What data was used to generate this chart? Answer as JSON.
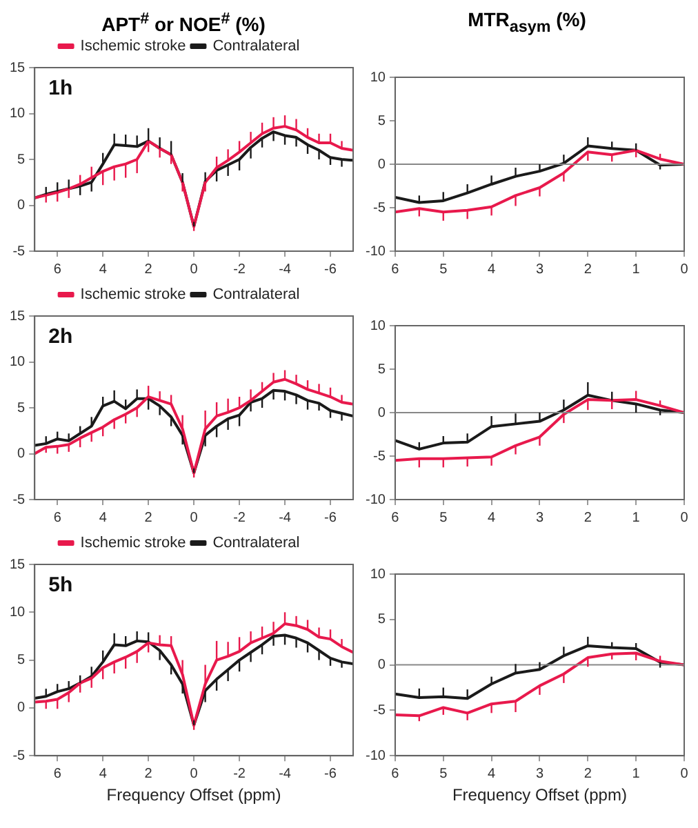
{
  "chart_data": [
    {
      "type": "line",
      "title": "APT$^{#}$ or NOE$^{#}$ (%)",
      "annotations": [
        "1h"
      ],
      "legend": "top",
      "x": [
        7,
        6.5,
        6,
        5.5,
        5,
        4.5,
        4,
        3.5,
        3,
        2.5,
        2,
        1.5,
        1,
        0.5,
        0,
        -0.5,
        -1,
        -1.5,
        -2,
        -2.5,
        -3,
        -3.5,
        -4,
        -4.5,
        -5,
        -5.5,
        -6,
        -6.5,
        -7
      ],
      "xlim": [
        7,
        -7
      ],
      "xticks": [
        6,
        4,
        2,
        0,
        -2,
        -4,
        -6
      ],
      "ylim": [
        -5,
        15
      ],
      "yticks": [
        -5,
        0,
        5,
        10,
        15
      ],
      "series": [
        {
          "name": "Ischemic stroke",
          "color": "#e8194c",
          "values": [
            0.8,
            1.1,
            1.4,
            1.8,
            2.3,
            3.0,
            3.7,
            4.2,
            4.5,
            5.0,
            7.0,
            6.2,
            5.5,
            2.5,
            -2.3,
            2.5,
            4.1,
            4.9,
            5.8,
            6.8,
            7.8,
            8.4,
            8.6,
            8.2,
            7.4,
            6.8,
            6.8,
            6.2,
            6.0
          ],
          "errors": [
            null,
            [
              0.3,
              1.1
            ],
            [
              0.4,
              1.4
            ],
            [
              0.8,
              1.8
            ],
            [
              2.3,
              3.3
            ],
            [
              3.0,
              4.2
            ],
            [
              2.2,
              3.7
            ],
            [
              2.7,
              4.2
            ],
            [
              3.0,
              4.5
            ],
            [
              3.5,
              5.0
            ],
            [
              5.8,
              7.0
            ],
            [
              5.2,
              6.2
            ],
            [
              4.5,
              5.5
            ],
            [
              1.5,
              2.5
            ],
            [
              -2.8,
              -2.3
            ],
            [
              1.5,
              2.5
            ],
            [
              4.1,
              5.3
            ],
            [
              4.9,
              6.1
            ],
            [
              5.8,
              7.0
            ],
            [
              6.8,
              8.0
            ],
            [
              7.8,
              9.0
            ],
            [
              8.4,
              9.6
            ],
            [
              8.6,
              9.8
            ],
            [
              8.2,
              9.4
            ],
            [
              7.4,
              8.4
            ],
            [
              6.8,
              7.8
            ],
            [
              6.8,
              7.8
            ],
            [
              6.2,
              7.0
            ],
            null
          ]
        },
        {
          "name": "Contralateral",
          "color": "#1a1a1a",
          "values": [
            0.8,
            1.2,
            1.5,
            1.8,
            2.1,
            2.5,
            4.5,
            6.6,
            6.5,
            6.4,
            7.0,
            6.2,
            5.5,
            2.5,
            -2.3,
            2.6,
            3.8,
            4.4,
            5.0,
            6.3,
            7.3,
            8.0,
            7.6,
            7.4,
            6.6,
            6.0,
            5.2,
            5.0,
            4.9
          ],
          "errors": [
            null,
            [
              1.2,
              2.0
            ],
            [
              1.5,
              2.5
            ],
            [
              1.8,
              2.8
            ],
            [
              1.1,
              2.1
            ],
            [
              1.5,
              2.5
            ],
            [
              4.5,
              5.7
            ],
            [
              6.6,
              7.8
            ],
            [
              6.5,
              7.7
            ],
            [
              6.4,
              7.6
            ],
            [
              7.0,
              8.4
            ],
            [
              6.2,
              7.4
            ],
            [
              5.5,
              7.0
            ],
            [
              2.5,
              3.5
            ],
            [
              -2.3,
              -1.8
            ],
            [
              2.6,
              3.6
            ],
            [
              2.6,
              3.8
            ],
            [
              3.2,
              4.4
            ],
            [
              3.8,
              5.0
            ],
            [
              5.1,
              6.3
            ],
            [
              6.3,
              7.3
            ],
            [
              7.0,
              8.0
            ],
            [
              6.6,
              7.6
            ],
            [
              6.4,
              7.4
            ],
            [
              5.6,
              6.6
            ],
            [
              5.0,
              6.0
            ],
            [
              4.4,
              5.2
            ],
            [
              4.2,
              5.0
            ],
            null
          ]
        }
      ]
    },
    {
      "type": "line",
      "title": "MTR$_{asym}$ (%)",
      "x": [
        6,
        5.5,
        5,
        4.5,
        4,
        3.5,
        3,
        2.5,
        2,
        1.5,
        1,
        0.5,
        0
      ],
      "xlim": [
        6,
        0
      ],
      "xticks": [
        6,
        5,
        4,
        3,
        2,
        1,
        0
      ],
      "ylim": [
        -10,
        10
      ],
      "yticks": [
        -10,
        -5,
        0,
        5,
        10
      ],
      "ref_lines": [
        {
          "axis": "y",
          "value": 0,
          "color": "#888888"
        }
      ],
      "series": [
        {
          "color": "#e8194c",
          "values": [
            -5.5,
            -5.1,
            -5.5,
            -5.3,
            -4.9,
            -3.6,
            -2.7,
            -1.0,
            1.4,
            1.1,
            1.6,
            0.6,
            0
          ],
          "errors": [
            null,
            [
              -6.0,
              -5.1
            ],
            [
              -6.5,
              -5.5
            ],
            [
              -6.3,
              -5.3
            ],
            [
              -5.9,
              -4.9
            ],
            [
              -4.8,
              -3.6
            ],
            [
              -3.7,
              -2.7
            ],
            [
              -2.0,
              -1.0
            ],
            [
              0.4,
              1.4
            ],
            [
              0.3,
              1.1
            ],
            [
              0.8,
              1.6
            ],
            [
              0.6,
              1.2
            ],
            null
          ]
        },
        {
          "color": "#1a1a1a",
          "values": [
            -3.8,
            -4.4,
            -4.2,
            -3.3,
            -2.3,
            -1.4,
            -0.8,
            0.1,
            2.1,
            1.8,
            1.6,
            -0.1,
            0
          ],
          "errors": [
            null,
            [
              -4.4,
              -3.6
            ],
            [
              -4.2,
              -3.2
            ],
            [
              -3.3,
              -2.3
            ],
            [
              -2.3,
              -1.3
            ],
            [
              -1.4,
              -0.4
            ],
            [
              -0.8,
              0.0
            ],
            [
              0.1,
              1.1
            ],
            [
              2.1,
              3.1
            ],
            [
              1.8,
              2.6
            ],
            [
              1.6,
              2.4
            ],
            [
              -0.6,
              -0.1
            ],
            null
          ]
        }
      ]
    },
    {
      "type": "line",
      "annotations": [
        "2h"
      ],
      "legend": "top",
      "x": [
        7,
        6.5,
        6,
        5.5,
        5,
        4.5,
        4,
        3.5,
        3,
        2.5,
        2,
        1.5,
        1,
        0.5,
        0,
        -0.5,
        -1,
        -1.5,
        -2,
        -2.5,
        -3,
        -3.5,
        -4,
        -4.5,
        -5,
        -5.5,
        -6,
        -6.5,
        -7
      ],
      "xlim": [
        7,
        -7
      ],
      "xticks": [
        6,
        4,
        2,
        0,
        -2,
        -4,
        -6
      ],
      "ylim": [
        -5,
        15
      ],
      "yticks": [
        -5,
        0,
        5,
        10,
        15
      ],
      "series": [
        {
          "name": "Ischemic stroke",
          "color": "#e8194c",
          "values": [
            0.0,
            0.7,
            0.8,
            1.0,
            1.7,
            2.3,
            2.9,
            3.7,
            4.3,
            5.0,
            6.2,
            5.8,
            5.4,
            2.7,
            -2.1,
            2.7,
            4.1,
            4.5,
            5.0,
            5.8,
            6.8,
            7.8,
            8.1,
            7.6,
            7.0,
            6.6,
            6.2,
            5.6,
            5.4
          ],
          "errors": [
            null,
            [
              0.1,
              0.7
            ],
            [
              0.0,
              0.8
            ],
            [
              0.2,
              1.0
            ],
            [
              0.7,
              1.7
            ],
            [
              1.3,
              2.3
            ],
            [
              1.9,
              2.9
            ],
            [
              2.7,
              3.7
            ],
            [
              3.3,
              4.3
            ],
            [
              4.0,
              5.0
            ],
            [
              6.2,
              7.4
            ],
            [
              5.8,
              6.8
            ],
            [
              5.4,
              6.4
            ],
            [
              2.7,
              4.2
            ],
            [
              -2.6,
              -2.1
            ],
            [
              2.7,
              4.7
            ],
            [
              4.1,
              5.6
            ],
            [
              4.5,
              6.0
            ],
            [
              5.0,
              6.2
            ],
            [
              5.8,
              7.0
            ],
            [
              6.8,
              7.8
            ],
            [
              7.8,
              8.8
            ],
            [
              8.1,
              9.1
            ],
            [
              7.6,
              8.6
            ],
            [
              7.0,
              8.0
            ],
            [
              6.6,
              7.6
            ],
            [
              6.2,
              7.2
            ],
            [
              5.6,
              6.4
            ],
            null
          ]
        },
        {
          "name": "Contralateral",
          "color": "#1a1a1a",
          "values": [
            0.9,
            1.1,
            1.6,
            1.4,
            2.2,
            3.0,
            5.2,
            5.7,
            4.9,
            6.0,
            6.0,
            5.2,
            4.0,
            2.0,
            -2.1,
            2.0,
            3.0,
            3.8,
            4.2,
            5.6,
            6.0,
            6.9,
            6.8,
            6.4,
            5.8,
            5.5,
            4.7,
            4.4,
            4.1
          ],
          "errors": [
            null,
            [
              1.1,
              1.9
            ],
            [
              1.6,
              2.4
            ],
            [
              1.4,
              2.2
            ],
            [
              2.2,
              3.0
            ],
            [
              3.0,
              4.0
            ],
            [
              5.2,
              6.2
            ],
            [
              5.7,
              6.9
            ],
            [
              4.9,
              5.9
            ],
            [
              6.0,
              7.0
            ],
            [
              4.8,
              6.0
            ],
            [
              4.2,
              5.2
            ],
            [
              3.0,
              4.0
            ],
            [
              1.0,
              2.0
            ],
            [
              -2.1,
              -1.6
            ],
            [
              0.8,
              2.0
            ],
            [
              1.8,
              3.0
            ],
            [
              2.6,
              3.8
            ],
            [
              3.0,
              4.2
            ],
            [
              4.6,
              5.6
            ],
            [
              5.0,
              6.0
            ],
            [
              5.9,
              6.9
            ],
            [
              5.8,
              6.8
            ],
            [
              5.4,
              6.4
            ],
            [
              4.8,
              5.8
            ],
            [
              4.7,
              5.5
            ],
            [
              3.9,
              4.7
            ],
            [
              3.6,
              4.4
            ],
            null
          ]
        }
      ]
    },
    {
      "type": "line",
      "x": [
        6,
        5.5,
        5,
        4.5,
        4,
        3.5,
        3,
        2.5,
        2,
        1.5,
        1,
        0.5,
        0
      ],
      "xlim": [
        6,
        0
      ],
      "xticks": [
        6,
        5,
        4,
        3,
        2,
        1,
        0
      ],
      "ylim": [
        -10,
        10
      ],
      "yticks": [
        -10,
        -5,
        0,
        5,
        10
      ],
      "ref_lines": [
        {
          "axis": "y",
          "value": 0,
          "color": "#888888"
        }
      ],
      "series": [
        {
          "color": "#e8194c",
          "values": [
            -5.5,
            -5.3,
            -5.3,
            -5.2,
            -5.1,
            -3.8,
            -2.8,
            -0.2,
            1.5,
            1.4,
            1.5,
            0.8,
            0
          ],
          "errors": [
            null,
            [
              -6.3,
              -5.3
            ],
            [
              -6.3,
              -5.3
            ],
            [
              -6.2,
              -5.2
            ],
            [
              -6.1,
              -5.1
            ],
            [
              -4.8,
              -3.8
            ],
            [
              -3.8,
              -2.8
            ],
            [
              -1.2,
              -0.2
            ],
            [
              0.3,
              1.5
            ],
            [
              0.4,
              1.4
            ],
            [
              1.5,
              2.5
            ],
            [
              0.8,
              1.4
            ],
            null
          ]
        },
        {
          "color": "#1a1a1a",
          "values": [
            -3.2,
            -4.2,
            -3.5,
            -3.4,
            -1.6,
            -1.3,
            -1.0,
            0.3,
            2.0,
            1.4,
            1.0,
            0.3,
            0
          ],
          "errors": [
            null,
            [
              -4.2,
              -3.4
            ],
            [
              -3.5,
              -2.7
            ],
            [
              -3.4,
              -2.4
            ],
            [
              -1.6,
              -0.4
            ],
            [
              -1.3,
              -0.1
            ],
            [
              -1.0,
              0.0
            ],
            [
              0.3,
              1.5
            ],
            [
              2.0,
              3.5
            ],
            [
              1.4,
              2.4
            ],
            [
              0.0,
              1.0
            ],
            [
              -0.3,
              0.3
            ],
            null
          ]
        }
      ]
    },
    {
      "type": "line",
      "annotations": [
        "5h"
      ],
      "legend": "top",
      "xlabel": "Frequency Offset (ppm)",
      "x": [
        7,
        6.5,
        6,
        5.5,
        5,
        4.5,
        4,
        3.5,
        3,
        2.5,
        2,
        1.5,
        1,
        0.5,
        0,
        -0.5,
        -1,
        -1.5,
        -2,
        -2.5,
        -3,
        -3.5,
        -4,
        -4.5,
        -5,
        -5.5,
        -6,
        -6.5,
        -7
      ],
      "xlim": [
        7,
        -7
      ],
      "xticks": [
        6,
        4,
        2,
        0,
        -2,
        -4,
        -6
      ],
      "ylim": [
        -5,
        15
      ],
      "yticks": [
        -5,
        0,
        5,
        10,
        15
      ],
      "series": [
        {
          "name": "Ischemic stroke",
          "color": "#e8194c",
          "values": [
            0.6,
            0.7,
            0.9,
            1.6,
            2.6,
            3.1,
            4.2,
            4.8,
            5.3,
            5.9,
            6.8,
            6.6,
            6.5,
            3.5,
            -1.8,
            2.5,
            5.0,
            5.4,
            5.9,
            6.8,
            7.3,
            7.8,
            8.8,
            8.6,
            8.2,
            7.4,
            7.2,
            6.4,
            5.8
          ],
          "errors": [
            null,
            [
              -0.1,
              0.7
            ],
            [
              -0.1,
              0.9
            ],
            [
              0.6,
              1.6
            ],
            [
              1.6,
              2.6
            ],
            [
              2.1,
              3.1
            ],
            [
              3.0,
              4.2
            ],
            [
              3.6,
              4.8
            ],
            [
              4.1,
              5.3
            ],
            [
              4.7,
              5.9
            ],
            [
              5.8,
              6.8
            ],
            [
              6.6,
              7.6
            ],
            [
              6.5,
              7.5
            ],
            [
              3.5,
              5.0
            ],
            [
              -2.3,
              -1.8
            ],
            [
              2.5,
              4.5
            ],
            [
              5.0,
              7.0
            ],
            [
              5.4,
              6.9
            ],
            [
              5.9,
              7.4
            ],
            [
              6.8,
              8.0
            ],
            [
              7.3,
              8.5
            ],
            [
              7.8,
              9.0
            ],
            [
              8.8,
              10.0
            ],
            [
              8.6,
              9.6
            ],
            [
              8.2,
              9.2
            ],
            [
              7.4,
              8.4
            ],
            [
              7.2,
              8.2
            ],
            [
              6.4,
              7.2
            ],
            null
          ]
        },
        {
          "name": "Contralateral",
          "color": "#1a1a1a",
          "values": [
            1.0,
            1.2,
            1.7,
            2.0,
            2.6,
            3.3,
            4.8,
            6.6,
            6.5,
            7.0,
            6.9,
            6.0,
            4.5,
            2.5,
            -1.8,
            1.8,
            3.0,
            4.0,
            5.0,
            5.8,
            6.6,
            7.5,
            7.6,
            7.3,
            6.8,
            6.0,
            5.2,
            4.8,
            4.6
          ],
          "errors": [
            null,
            [
              1.2,
              2.0
            ],
            [
              1.7,
              2.5
            ],
            [
              2.0,
              2.8
            ],
            [
              2.6,
              3.4
            ],
            [
              3.3,
              4.3
            ],
            [
              4.8,
              6.0
            ],
            [
              6.6,
              7.8
            ],
            [
              6.5,
              7.5
            ],
            [
              7.0,
              8.0
            ],
            [
              6.9,
              7.9
            ],
            [
              5.0,
              6.0
            ],
            [
              3.5,
              4.5
            ],
            [
              1.5,
              2.5
            ],
            [
              -1.8,
              -1.3
            ],
            [
              0.6,
              1.8
            ],
            [
              1.8,
              3.0
            ],
            [
              2.8,
              4.0
            ],
            [
              3.8,
              5.0
            ],
            [
              4.8,
              5.8
            ],
            [
              5.6,
              6.6
            ],
            [
              6.5,
              7.5
            ],
            [
              6.6,
              7.6
            ],
            [
              6.3,
              7.3
            ],
            [
              5.8,
              6.8
            ],
            [
              5.0,
              6.0
            ],
            [
              4.4,
              5.2
            ],
            [
              4.2,
              4.8
            ],
            null
          ]
        }
      ]
    },
    {
      "type": "line",
      "xlabel": "Frequency Offset (ppm)",
      "x": [
        6,
        5.5,
        5,
        4.5,
        4,
        3.5,
        3,
        2.5,
        2,
        1.5,
        1,
        0.5,
        0
      ],
      "xlim": [
        6,
        0
      ],
      "xticks": [
        6,
        5,
        4,
        3,
        2,
        1,
        0
      ],
      "ylim": [
        -10,
        10
      ],
      "yticks": [
        -10,
        -5,
        0,
        5,
        10
      ],
      "ref_lines": [
        {
          "axis": "y",
          "value": 0,
          "color": "#888888"
        }
      ],
      "series": [
        {
          "color": "#e8194c",
          "values": [
            -5.5,
            -5.6,
            -4.7,
            -5.3,
            -4.3,
            -4.0,
            -2.3,
            -1.0,
            0.8,
            1.2,
            1.3,
            0.4,
            0
          ],
          "errors": [
            null,
            [
              -6.2,
              -5.6
            ],
            [
              -5.5,
              -4.7
            ],
            [
              -6.1,
              -5.3
            ],
            [
              -5.3,
              -4.3
            ],
            [
              -5.2,
              -4.0
            ],
            [
              -3.3,
              -2.3
            ],
            [
              -2.0,
              -1.0
            ],
            [
              -0.2,
              0.8
            ],
            [
              0.6,
              1.2
            ],
            [
              0.5,
              1.3
            ],
            [
              0.4,
              1.0
            ],
            null
          ]
        },
        {
          "color": "#1a1a1a",
          "values": [
            -3.2,
            -3.6,
            -3.5,
            -3.7,
            -2.1,
            -0.9,
            -0.5,
            1.0,
            2.1,
            1.9,
            1.8,
            0.3,
            0
          ],
          "errors": [
            null,
            [
              -3.6,
              -2.6
            ],
            [
              -3.5,
              -2.5
            ],
            [
              -3.7,
              -2.7
            ],
            [
              -2.1,
              -1.3
            ],
            [
              -0.9,
              0.1
            ],
            [
              -0.5,
              0.3
            ],
            [
              1.0,
              2.0
            ],
            [
              2.1,
              3.1
            ],
            [
              1.9,
              2.5
            ],
            [
              1.8,
              2.4
            ],
            [
              -0.3,
              0.3
            ],
            null
          ]
        }
      ]
    }
  ]
}
